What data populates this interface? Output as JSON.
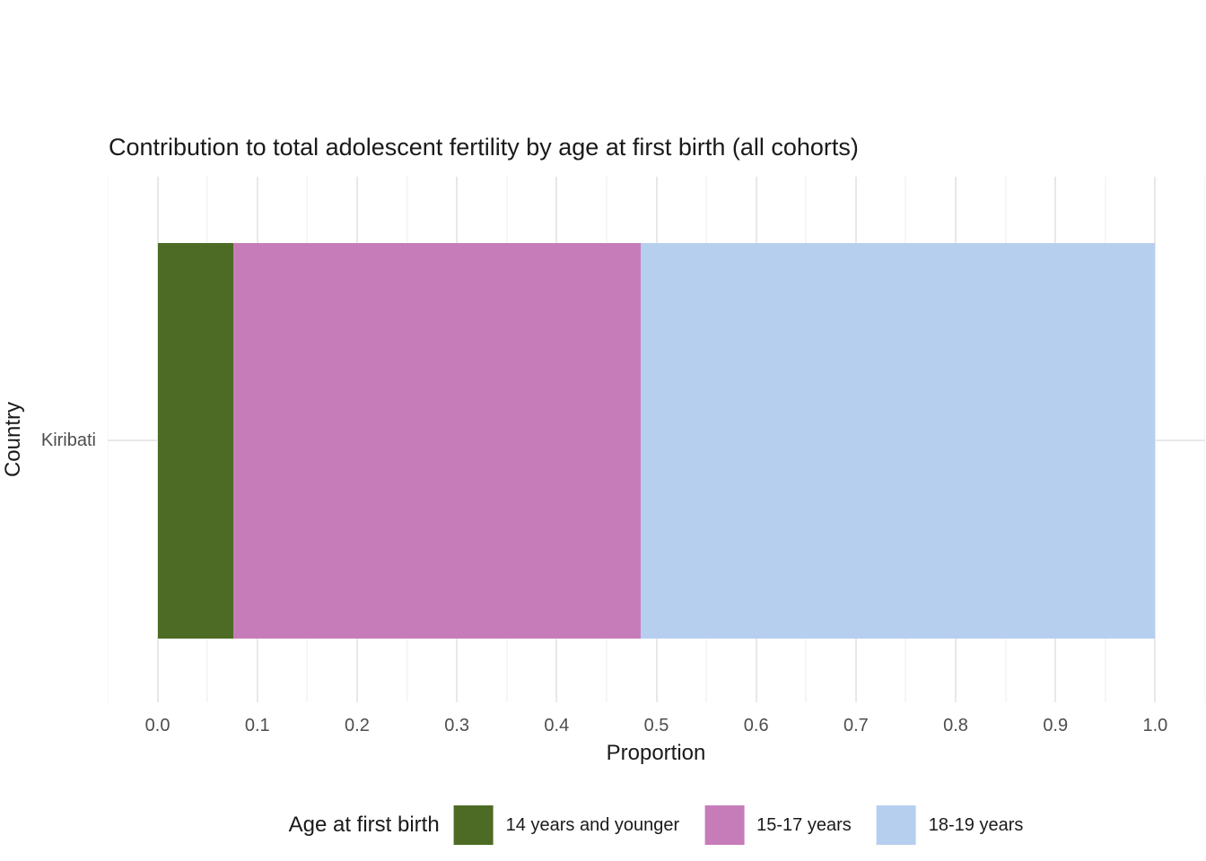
{
  "chart_data": {
    "type": "bar",
    "orientation": "horizontal",
    "stacked": true,
    "title": "Contribution to total adolescent fertility by age at first birth (all cohorts)",
    "xlabel": "Proportion",
    "ylabel": "Country",
    "categories": [
      "Kiribati"
    ],
    "series": [
      {
        "name": "14 years and younger",
        "color": "#4d6b24",
        "values": [
          0.076
        ]
      },
      {
        "name": "15-17 years",
        "color": "#c77cba",
        "values": [
          0.408
        ]
      },
      {
        "name": "18-19 years",
        "color": "#b6cfee",
        "values": [
          0.516
        ]
      }
    ],
    "xlim": [
      0.0,
      1.0
    ],
    "x_ticks": [
      "0.0",
      "0.1",
      "0.2",
      "0.3",
      "0.4",
      "0.5",
      "0.6",
      "0.7",
      "0.8",
      "0.9",
      "1.0"
    ],
    "x_tick_values": [
      0.0,
      0.1,
      0.2,
      0.3,
      0.4,
      0.5,
      0.6,
      0.7,
      0.8,
      0.9,
      1.0
    ],
    "grid": "vertical major every 0.1, minor every 0.05; horizontal major at category",
    "legend": {
      "title": "Age at first birth",
      "position": "bottom"
    }
  }
}
